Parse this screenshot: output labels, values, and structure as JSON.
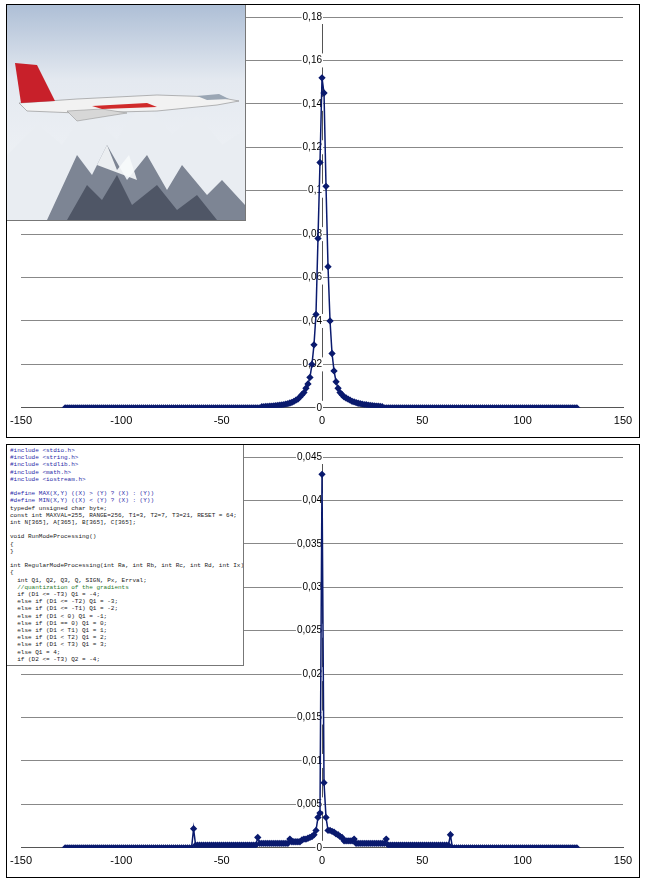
{
  "chart_data": [
    {
      "type": "line",
      "color": "#0a1a6e",
      "marker": "diamond",
      "grid": "y",
      "xlim": [
        -150,
        150
      ],
      "xticks": [
        -150,
        -100,
        -50,
        0,
        50,
        100,
        150
      ],
      "ylim": [
        0,
        0.18
      ],
      "yticks": [
        0,
        {
          "value": 0.02,
          "label": "0,02"
        },
        {
          "value": 0.04,
          "label": "0,04"
        },
        {
          "value": 0.06,
          "label": "0,06"
        },
        {
          "value": 0.08,
          "label": "0,08"
        },
        {
          "value": 0.1,
          "label": "0,1"
        },
        {
          "value": 0.12,
          "label": "0,12"
        },
        {
          "value": 0.14,
          "label": "0,14"
        },
        {
          "value": 0.16,
          "label": "0,16"
        },
        {
          "value": 0.18,
          "label": "0,18"
        }
      ],
      "x": [
        -128,
        -127,
        -126,
        -125,
        -124,
        -123,
        -122,
        -121,
        -120,
        -119,
        -118,
        -117,
        -116,
        -115,
        -114,
        -113,
        -112,
        -111,
        -110,
        -109,
        -108,
        -107,
        -106,
        -105,
        -104,
        -103,
        -102,
        -101,
        -100,
        -99,
        -98,
        -97,
        -96,
        -95,
        -94,
        -93,
        -92,
        -91,
        -90,
        -89,
        -88,
        -87,
        -86,
        -85,
        -84,
        -83,
        -82,
        -81,
        -80,
        -79,
        -78,
        -77,
        -76,
        -75,
        -74,
        -73,
        -72,
        -71,
        -70,
        -69,
        -68,
        -67,
        -66,
        -65,
        -64,
        -63,
        -62,
        -61,
        -60,
        -59,
        -58,
        -57,
        -56,
        -55,
        -54,
        -53,
        -52,
        -51,
        -50,
        -49,
        -48,
        -47,
        -46,
        -45,
        -44,
        -43,
        -42,
        -41,
        -40,
        -39,
        -38,
        -37,
        -36,
        -35,
        -34,
        -33,
        -32,
        -31,
        -30,
        -29,
        -28,
        -27,
        -26,
        -25,
        -24,
        -23,
        -22,
        -21,
        -20,
        -19,
        -18,
        -17,
        -16,
        -15,
        -14,
        -13,
        -12,
        -11,
        -10,
        -9,
        -8,
        -7,
        -6,
        -5,
        -4,
        -3,
        -2,
        -1,
        0,
        1,
        2,
        3,
        4,
        5,
        6,
        7,
        8,
        9,
        10,
        11,
        12,
        13,
        14,
        15,
        16,
        17,
        18,
        19,
        20,
        21,
        22,
        23,
        24,
        25,
        26,
        27,
        28,
        29,
        30,
        31,
        32,
        33,
        34,
        35,
        36,
        37,
        38,
        39,
        40,
        41,
        42,
        43,
        44,
        45,
        46,
        47,
        48,
        49,
        50,
        51,
        52,
        53,
        54,
        55,
        56,
        57,
        58,
        59,
        60,
        61,
        62,
        63,
        64,
        65,
        66,
        67,
        68,
        69,
        70,
        71,
        72,
        73,
        74,
        75,
        76,
        77,
        78,
        79,
        80,
        81,
        82,
        83,
        84,
        85,
        86,
        87,
        88,
        89,
        90,
        91,
        92,
        93,
        94,
        95,
        96,
        97,
        98,
        99,
        100,
        101,
        102,
        103,
        104,
        105,
        106,
        107,
        108,
        109,
        110,
        111,
        112,
        113,
        114,
        115,
        116,
        117,
        118,
        119,
        120,
        121,
        122,
        123,
        124,
        125,
        126,
        127
      ],
      "values": [
        0,
        0,
        0,
        0,
        0,
        0,
        0,
        0,
        0,
        0,
        0,
        0,
        0,
        0,
        0,
        0,
        0,
        0,
        0,
        0,
        0,
        0,
        0,
        0,
        0,
        0,
        0,
        0,
        0,
        0,
        0,
        0,
        0,
        0,
        0,
        0,
        0,
        0,
        0,
        0,
        0,
        0,
        0,
        0,
        0,
        0,
        0,
        0,
        0,
        0,
        0,
        0,
        0,
        0,
        0,
        0,
        0,
        0,
        0,
        0,
        0,
        0,
        0,
        0,
        0,
        0,
        0,
        0,
        0,
        0,
        0,
        0,
        0,
        0,
        0,
        0,
        0,
        0,
        0,
        0,
        0,
        0,
        0,
        0,
        0,
        0,
        0,
        0,
        0,
        0,
        0,
        0,
        0,
        0,
        0,
        0,
        0,
        0,
        0.0005,
        0.0005,
        0.0006,
        0.0006,
        0.0007,
        0.0008,
        0.0009,
        0.001,
        0.0011,
        0.0012,
        0.0013,
        0.0015,
        0.0017,
        0.0019,
        0.0022,
        0.0025,
        0.003,
        0.0035,
        0.004,
        0.005,
        0.006,
        0.007,
        0.009,
        0.011,
        0.014,
        0.02,
        0.029,
        0.043,
        0.078,
        0.113,
        0.152,
        0.145,
        0.102,
        0.065,
        0.04,
        0.025,
        0.017,
        0.012,
        0.009,
        0.007,
        0.006,
        0.005,
        0.0045,
        0.004,
        0.0035,
        0.003,
        0.0027,
        0.0024,
        0.0021,
        0.0019,
        0.0017,
        0.0015,
        0.0014,
        0.0012,
        0.0011,
        0.001,
        0.0009,
        0.0008,
        0.0007,
        0.0006,
        0.0005,
        0,
        0,
        0,
        0,
        0,
        0,
        0,
        0,
        0,
        0,
        0,
        0,
        0,
        0,
        0,
        0,
        0,
        0,
        0,
        0,
        0,
        0,
        0,
        0,
        0,
        0,
        0,
        0,
        0,
        0,
        0,
        0,
        0,
        0,
        0,
        0,
        0,
        0,
        0,
        0,
        0,
        0,
        0,
        0,
        0,
        0,
        0,
        0,
        0,
        0,
        0,
        0,
        0,
        0,
        0,
        0,
        0,
        0,
        0,
        0,
        0,
        0,
        0,
        0,
        0,
        0,
        0,
        0,
        0,
        0,
        0,
        0,
        0,
        0,
        0,
        0,
        0,
        0,
        0,
        0,
        0,
        0,
        0,
        0,
        0,
        0,
        0,
        0,
        0,
        0,
        0,
        0,
        0,
        0,
        0,
        0,
        0
      ]
    },
    {
      "type": "line",
      "color": "#0a1a6e",
      "marker": "diamond",
      "grid": "y",
      "xlim": [
        -150,
        150
      ],
      "xticks": [
        -150,
        -100,
        -50,
        0,
        50,
        100,
        150
      ],
      "ylim": [
        0,
        0.045
      ],
      "yticks": [
        0,
        {
          "value": 0.005,
          "label": "0,005"
        },
        {
          "value": 0.01,
          "label": "0,01"
        },
        {
          "value": 0.015,
          "label": "0,015"
        },
        {
          "value": 0.02,
          "label": "0,02"
        },
        {
          "value": 0.025,
          "label": "0,025"
        },
        {
          "value": 0.03,
          "label": "0,03"
        },
        {
          "value": 0.035,
          "label": "0,035"
        },
        {
          "value": 0.04,
          "label": "0,04"
        },
        {
          "value": 0.045,
          "label": "0,045"
        }
      ],
      "x": [
        -128,
        -127,
        -126,
        -125,
        -124,
        -123,
        -122,
        -121,
        -120,
        -119,
        -118,
        -117,
        -116,
        -115,
        -114,
        -113,
        -112,
        -111,
        -110,
        -109,
        -108,
        -107,
        -106,
        -105,
        -104,
        -103,
        -102,
        -101,
        -100,
        -99,
        -98,
        -97,
        -96,
        -95,
        -94,
        -93,
        -92,
        -91,
        -90,
        -89,
        -88,
        -87,
        -86,
        -85,
        -84,
        -83,
        -82,
        -81,
        -80,
        -79,
        -78,
        -77,
        -76,
        -75,
        -74,
        -73,
        -72,
        -71,
        -70,
        -69,
        -68,
        -67,
        -66,
        -65,
        -64,
        -63,
        -62,
        -61,
        -60,
        -59,
        -58,
        -57,
        -56,
        -55,
        -54,
        -53,
        -52,
        -51,
        -50,
        -49,
        -48,
        -47,
        -46,
        -45,
        -44,
        -43,
        -42,
        -41,
        -40,
        -39,
        -38,
        -37,
        -36,
        -35,
        -34,
        -33,
        -32,
        -31,
        -30,
        -29,
        -28,
        -27,
        -26,
        -25,
        -24,
        -23,
        -22,
        -21,
        -20,
        -19,
        -18,
        -17,
        -16,
        -15,
        -14,
        -13,
        -12,
        -11,
        -10,
        -9,
        -8,
        -7,
        -6,
        -5,
        -4,
        -3,
        -2,
        -1,
        0,
        1,
        2,
        3,
        4,
        5,
        6,
        7,
        8,
        9,
        10,
        11,
        12,
        13,
        14,
        15,
        16,
        17,
        18,
        19,
        20,
        21,
        22,
        23,
        24,
        25,
        26,
        27,
        28,
        29,
        30,
        31,
        32,
        33,
        34,
        35,
        36,
        37,
        38,
        39,
        40,
        41,
        42,
        43,
        44,
        45,
        46,
        47,
        48,
        49,
        50,
        51,
        52,
        53,
        54,
        55,
        56,
        57,
        58,
        59,
        60,
        61,
        62,
        63,
        64,
        65,
        66,
        67,
        68,
        69,
        70,
        71,
        72,
        73,
        74,
        75,
        76,
        77,
        78,
        79,
        80,
        81,
        82,
        83,
        84,
        85,
        86,
        87,
        88,
        89,
        90,
        91,
        92,
        93,
        94,
        95,
        96,
        97,
        98,
        99,
        100,
        101,
        102,
        103,
        104,
        105,
        106,
        107,
        108,
        109,
        110,
        111,
        112,
        113,
        114,
        115,
        116,
        117,
        118,
        119,
        120,
        121,
        122,
        123,
        124,
        125,
        126,
        127
      ],
      "values": [
        0,
        0,
        0,
        0,
        0,
        0,
        0,
        0,
        0,
        0,
        0,
        0,
        0,
        0,
        0,
        0,
        0,
        0,
        0,
        0,
        0,
        0,
        0,
        0,
        0,
        0,
        0,
        0,
        0,
        0,
        0,
        0,
        0,
        0,
        0,
        0,
        0,
        0,
        0,
        0,
        0,
        0,
        0,
        0,
        0,
        0,
        0,
        0,
        0,
        0,
        0,
        0,
        0,
        0,
        0,
        0,
        0,
        0,
        0,
        0,
        0,
        0,
        0,
        0,
        0.0022,
        0.0003,
        0.0003,
        0.0003,
        0.0003,
        0.0003,
        0.0003,
        0.0003,
        0.0003,
        0.0003,
        0.0003,
        0.0003,
        0.0003,
        0.0003,
        0.0003,
        0.0003,
        0.0003,
        0.0003,
        0.0003,
        0.0003,
        0.0003,
        0.0003,
        0.0003,
        0.0003,
        0.0003,
        0.0003,
        0.0003,
        0.0003,
        0.0003,
        0.0003,
        0.0003,
        0.0003,
        0.0012,
        0.0005,
        0.0005,
        0.0005,
        0.0005,
        0.0005,
        0.0005,
        0.0005,
        0.0005,
        0.0005,
        0.0005,
        0.0005,
        0.0005,
        0.0005,
        0.0005,
        0.0005,
        0.001,
        0.0007,
        0.0007,
        0.0007,
        0.0007,
        0.0007,
        0.0009,
        0.001,
        0.001,
        0.0011,
        0.0012,
        0.0013,
        0.0015,
        0.002,
        0.0035,
        0.004,
        0.043,
        0.0075,
        0.0035,
        0.002,
        0.002,
        0.0019,
        0.0018,
        0.0016,
        0.0015,
        0.0013,
        0.0012,
        0.0008,
        0.0008,
        0.0008,
        0.0008,
        0.0008,
        0.001,
        0.0005,
        0.0005,
        0.0005,
        0.0005,
        0.0005,
        0.0005,
        0.0005,
        0.0005,
        0.0005,
        0.0005,
        0.0005,
        0.0005,
        0.0005,
        0.0005,
        0.0005,
        0.001,
        0.0003,
        0.0003,
        0.0003,
        0.0003,
        0.0003,
        0.0003,
        0.0003,
        0.0003,
        0.0003,
        0.0003,
        0.0003,
        0.0003,
        0.0003,
        0.0003,
        0.0003,
        0.0003,
        0.0003,
        0.0003,
        0.0003,
        0.0003,
        0.0003,
        0.0003,
        0.0003,
        0.0003,
        0.0003,
        0.0003,
        0.0003,
        0.0003,
        0.0003,
        0.0003,
        0.0003,
        0.0015,
        0,
        0,
        0,
        0,
        0,
        0,
        0,
        0,
        0,
        0,
        0,
        0,
        0,
        0,
        0,
        0,
        0,
        0,
        0,
        0,
        0,
        0,
        0,
        0,
        0,
        0,
        0,
        0,
        0,
        0,
        0,
        0,
        0,
        0,
        0,
        0,
        0,
        0,
        0,
        0,
        0,
        0,
        0,
        0,
        0,
        0,
        0,
        0,
        0,
        0,
        0,
        0,
        0,
        0,
        0,
        0,
        0,
        0,
        0,
        0,
        0,
        0,
        0
      ]
    }
  ],
  "code_inset": [
    "#include <stdio.h>",
    "#include <string.h>",
    "#include <stdlib.h>",
    "#include <math.h>",
    "#include <iostream.h>",
    "",
    "#define MAX(X,Y) ((X) > (Y) ? (X) : (Y))",
    "#define MIN(X,Y) ((X) < (Y) ? (X) : (Y))",
    "typedef unsigned char byte;",
    "const int MAXVAL=255, RANGE=256, T1=3, T2=7, T3=21, RESET = 64;",
    "int N[365], A[365], B[365], C[365];",
    "",
    "void RunModeProcessing()",
    "{",
    "}",
    "",
    "int RegularModeProcessing(int Ra, int Rb, int Rc, int Rd, int Ix)",
    "{",
    "  int Q1, Q2, Q3, Q, SIGN, Px, Errval;",
    "  //quantization of the gradients",
    "  if (D1 <= -T3) Q1 = -4;",
    "  else if (D1 <= -T2) Q1 = -3;",
    "  else if (D1 <= -T1) Q1 = -2;",
    "  else if (D1 < 0) Q1 = -1;",
    "  else if (D1 == 0) Q1 = 0;",
    "  else if (D1 < T1) Q1 = 1;",
    "  else if (D1 < T2) Q1 = 2;",
    "  else if (D1 < T3) Q1 = 3;",
    "  else Q1 = 4;",
    "  if (D2 <= -T3) Q2 = -4;"
  ]
}
